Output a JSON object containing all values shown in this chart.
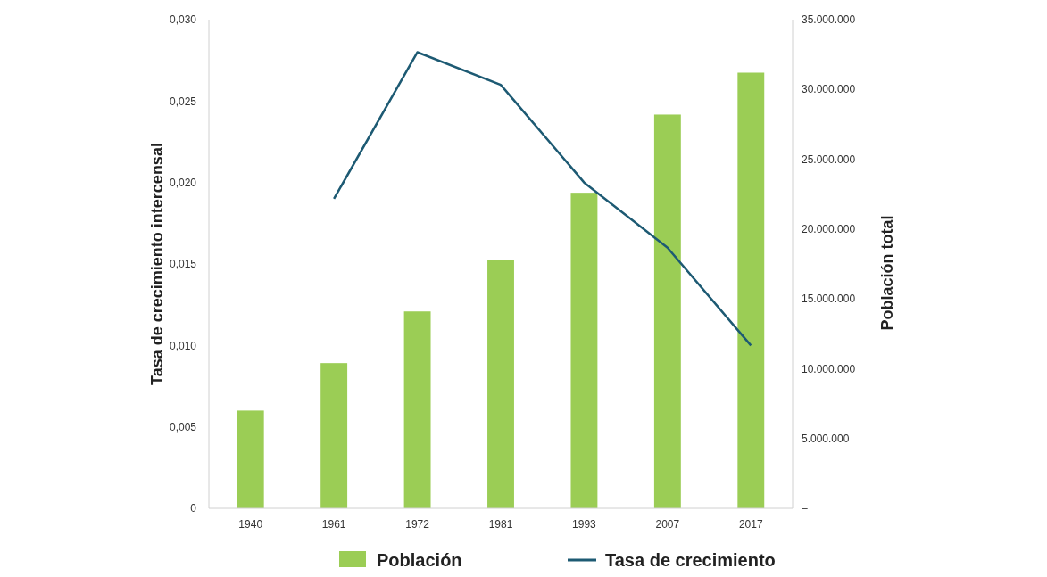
{
  "chart_data": {
    "type": "bar",
    "categories": [
      "1940",
      "1961",
      "1972",
      "1981",
      "1993",
      "2007",
      "2017"
    ],
    "series": [
      {
        "name": "Población",
        "axis": "y2",
        "color": "#9bcd55",
        "values": [
          7000000,
          10400000,
          14100000,
          17800000,
          22600000,
          28200000,
          31200000
        ]
      },
      {
        "name": "Tasa de crecimiento",
        "type": "line",
        "axis": "y",
        "color": "#1d5a73",
        "values": [
          null,
          0.019,
          0.028,
          0.026,
          0.02,
          0.016,
          0.01
        ]
      }
    ],
    "ylabel": "Tasa de crecimiento intercensal",
    "y2label": "Población total",
    "ylim": [
      0,
      0.03
    ],
    "yticks": [
      {
        "value": 0,
        "label": "0"
      },
      {
        "value": 0.005,
        "label": "0,005"
      },
      {
        "value": 0.01,
        "label": "0,010"
      },
      {
        "value": 0.015,
        "label": "0,015"
      },
      {
        "value": 0.02,
        "label": "0,020"
      },
      {
        "value": 0.025,
        "label": "0,025"
      },
      {
        "value": 0.03,
        "label": "0,030"
      }
    ],
    "y2lim": [
      0,
      35000000
    ],
    "y2ticks": [
      {
        "value": 0,
        "label": "–"
      },
      {
        "value": 5000000,
        "label": "5.000.000"
      },
      {
        "value": 10000000,
        "label": "10.000.000"
      },
      {
        "value": 15000000,
        "label": "15.000.000"
      },
      {
        "value": 20000000,
        "label": "20.000.000"
      },
      {
        "value": 25000000,
        "label": "25.000.000"
      },
      {
        "value": 30000000,
        "label": "30.000.000"
      },
      {
        "value": 35000000,
        "label": "35.000.000"
      }
    ],
    "grid": false,
    "legend": "bottom",
    "marker": "none",
    "line_style": "solid"
  }
}
